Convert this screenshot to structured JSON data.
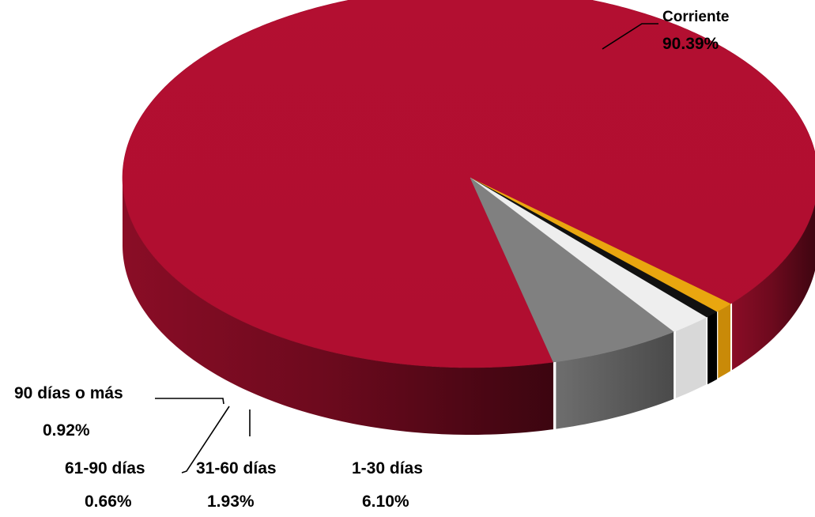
{
  "chart_data": {
    "type": "pie",
    "style": "3d",
    "slices": [
      {
        "label": "Corriente",
        "value": 90.39,
        "value_label": "90.39%",
        "color": "#B00E30"
      },
      {
        "label": "1-30 días",
        "value": 6.1,
        "value_label": "6.10%",
        "color": "#808080"
      },
      {
        "label": "31-60 días",
        "value": 1.93,
        "value_label": "1.93%",
        "color": "#EEEEEE"
      },
      {
        "label": "61-90 días",
        "value": 0.66,
        "value_label": "0.66%",
        "color": "#111111"
      },
      {
        "label": "90 días o más",
        "value": 0.92,
        "value_label": "0.92%",
        "color": "#E9A60F"
      }
    ]
  }
}
